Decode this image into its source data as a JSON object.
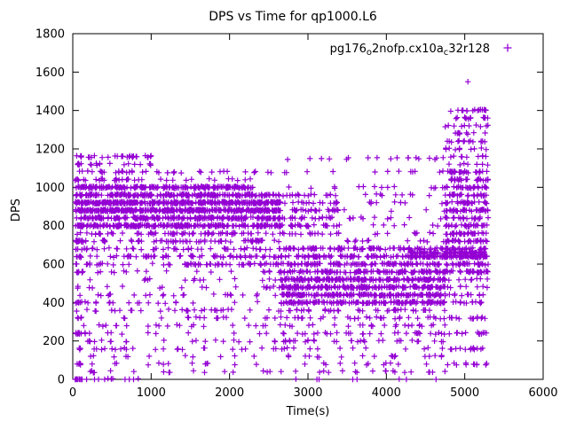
{
  "chart_data": {
    "type": "scatter",
    "title": "DPS vs Time for qp1000.L6",
    "xlabel": "Time(s)",
    "ylabel": "DPS",
    "xlim": [
      0,
      6000
    ],
    "ylim": [
      0,
      1800
    ],
    "xticks": [
      0,
      1000,
      2000,
      3000,
      4000,
      5000,
      6000
    ],
    "yticks": [
      0,
      200,
      400,
      600,
      800,
      1000,
      1200,
      1400,
      1600,
      1800
    ],
    "grid": false,
    "legend_position": "top-right-inside",
    "marker": "plus",
    "color": "#9400d3",
    "series_label_plain": "pg176_o2nofp.cx10a_c32r128",
    "legend_parts": {
      "p1": "pg176",
      "sub1": "o",
      "p2": "2nofp.cx10a",
      "sub2": "c",
      "p3": "32r128"
    },
    "seed": 42,
    "distribution_bands": [
      {
        "x": [
          30,
          2650
        ],
        "levels": [
          880,
          920
        ],
        "n": 700
      },
      {
        "x": [
          30,
          2650
        ],
        "levels": [
          840,
          960
        ],
        "n": 400
      },
      {
        "x": [
          30,
          2650
        ],
        "levels": [
          800
        ],
        "n": 250
      },
      {
        "x": [
          30,
          2300
        ],
        "levels": [
          1000
        ],
        "n": 200
      },
      {
        "x": [
          30,
          1000
        ],
        "levels": [
          1040,
          1080,
          1120,
          1160
        ],
        "n": 90
      },
      {
        "x": [
          1000,
          2650
        ],
        "levels": [
          1040,
          1080
        ],
        "n": 30
      },
      {
        "x": [
          30,
          2650
        ],
        "levels": [
          600,
          640,
          680,
          720,
          760
        ],
        "n": 320
      },
      {
        "x": [
          30,
          2650
        ],
        "levels": [
          40,
          80,
          120,
          160,
          200,
          240,
          280,
          320,
          360,
          400,
          440,
          480,
          520,
          560
        ],
        "n": 260
      },
      {
        "x": [
          40,
          120
        ],
        "levels": [
          0,
          80,
          160,
          240,
          320,
          400,
          480,
          560,
          640,
          720,
          800,
          880,
          960,
          1040,
          1120
        ],
        "n": 70
      },
      {
        "x": [
          30,
          900
        ],
        "levels": [
          0
        ],
        "n": 15
      },
      {
        "x": [
          2650,
          4750
        ],
        "levels": [
          440,
          480,
          520
        ],
        "n": 500
      },
      {
        "x": [
          2650,
          4750
        ],
        "levels": [
          400,
          560
        ],
        "n": 250
      },
      {
        "x": [
          2650,
          4750
        ],
        "levels": [
          600,
          640,
          680
        ],
        "n": 280
      },
      {
        "x": [
          2650,
          4750
        ],
        "levels": [
          200,
          240,
          280,
          320,
          360
        ],
        "n": 160
      },
      {
        "x": [
          2650,
          4750
        ],
        "levels": [
          0,
          40,
          80,
          120,
          160
        ],
        "n": 70
      },
      {
        "x": [
          2650,
          3400
        ],
        "levels": [
          760,
          800,
          840,
          880,
          920,
          960
        ],
        "n": 120
      },
      {
        "x": [
          3400,
          4750
        ],
        "levels": [
          720,
          760,
          800,
          840,
          880,
          920,
          960,
          1000,
          1080,
          1150
        ],
        "n": 80
      },
      {
        "x": [
          2650,
          4750
        ],
        "levels": [
          1000,
          1080,
          1150
        ],
        "n": 25
      },
      {
        "x": [
          4750,
          5300
        ],
        "levels": [
          560,
          600,
          640,
          680,
          720,
          760,
          800,
          840,
          880,
          920,
          960,
          1000,
          1040,
          1080
        ],
        "n": 400
      },
      {
        "x": [
          4750,
          5300
        ],
        "levels": [
          1120,
          1160,
          1200,
          1240,
          1280,
          1320,
          1360,
          1400
        ],
        "n": 90
      },
      {
        "x": [
          4750,
          5300
        ],
        "levels": [
          80,
          160,
          240,
          320,
          400,
          440,
          480,
          520
        ],
        "n": 90
      },
      {
        "x": [
          4300,
          5250
        ],
        "levels": [
          640,
          660
        ],
        "n": 150
      }
    ],
    "highlight_points": [
      [
        5040,
        1550
      ]
    ]
  }
}
